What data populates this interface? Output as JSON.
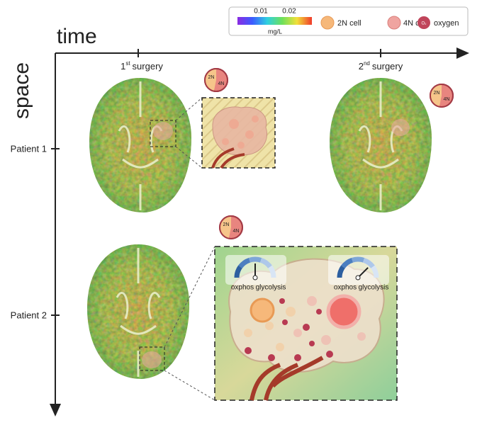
{
  "axes": {
    "x_label": "time",
    "y_label": "space"
  },
  "timepoints": [
    {
      "ordinal": "1",
      "suffix": "st",
      "label": "surgery"
    },
    {
      "ordinal": "2",
      "suffix": "nd",
      "label": "surgery"
    }
  ],
  "patients": [
    "Patient 1",
    "Patient 2"
  ],
  "legend": {
    "colorbar": {
      "ticks": [
        "0.01",
        "0.02"
      ],
      "unit": "mg/L"
    },
    "items": [
      {
        "label": "2N cell"
      },
      {
        "label": "4N cell"
      },
      {
        "label": "oxygen",
        "icon": "O₂"
      }
    ]
  },
  "pies": [
    {
      "first": "2N",
      "second": "4N"
    },
    {
      "first": "2N",
      "second": "4N"
    },
    {
      "first": "2N",
      "second": "4N"
    }
  ],
  "gauges": [
    {
      "left": "oxphos",
      "right": "glycolysis"
    },
    {
      "left": "oxphos",
      "right": "glycolysis"
    }
  ]
}
